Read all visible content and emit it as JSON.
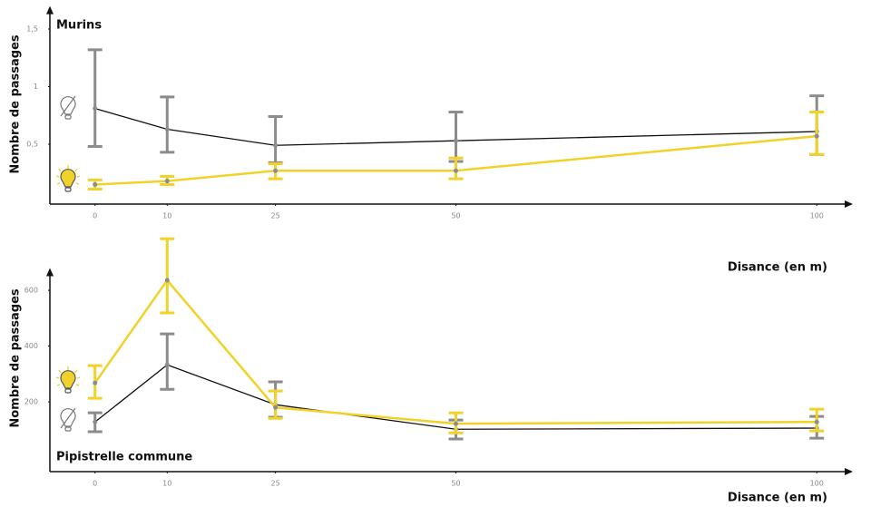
{
  "chart_data": [
    {
      "type": "line",
      "title": "Murins",
      "ylabel": "Nombre de passages",
      "xlabel": "Disance (en m)",
      "x": [
        0,
        10,
        25,
        50,
        100
      ],
      "xlim": [
        -6,
        105
      ],
      "xticks": [
        0,
        10,
        25,
        50,
        100
      ],
      "ylim": [
        0,
        1.7
      ],
      "yticks": [
        {
          "value": 0.5,
          "label": "0,5"
        },
        1,
        {
          "value": 1.5,
          "label": "1,5"
        }
      ],
      "series": [
        {
          "color": "#8c8c8c",
          "line_color": "#111111",
          "values": [
            0.81,
            0.63,
            0.49,
            0.53,
            0.61
          ],
          "err_low": [
            0.48,
            0.43,
            0.34,
            0.35,
            0.41
          ],
          "err_high": [
            1.32,
            0.91,
            0.74,
            0.78,
            0.92
          ]
        },
        {
          "color": "#f0d22a",
          "line_color": "#f0d22a",
          "values": [
            0.15,
            0.18,
            0.27,
            0.27,
            0.57
          ],
          "err_low": [
            0.11,
            0.15,
            0.2,
            0.2,
            0.41
          ],
          "err_high": [
            0.19,
            0.22,
            0.33,
            0.38,
            0.78
          ]
        }
      ]
    },
    {
      "type": "line",
      "title": "Pipistrelle commune",
      "ylabel": "Nombre de passages",
      "xlabel": "Disance (en m)",
      "x": [
        0,
        10,
        25,
        50,
        100
      ],
      "xlim": [
        -6,
        105
      ],
      "xticks": [
        0,
        10,
        25,
        50,
        100
      ],
      "ylim": [
        -50,
        680
      ],
      "yticks": [
        200,
        400,
        600
      ],
      "series": [
        {
          "color": "#8c8c8c",
          "line_color": "#111111",
          "values": [
            128,
            333,
            190,
            102,
            106
          ],
          "err_low": [
            93,
            245,
            145,
            67,
            70
          ],
          "err_high": [
            161,
            444,
            272,
            135,
            148
          ]
        },
        {
          "color": "#f0d22a",
          "line_color": "#f0d22a",
          "values": [
            268,
            636,
            180,
            122,
            128
          ],
          "err_low": [
            213,
            519,
            141,
            89,
            96
          ],
          "err_high": [
            330,
            785,
            239,
            161,
            174
          ]
        }
      ]
    }
  ]
}
